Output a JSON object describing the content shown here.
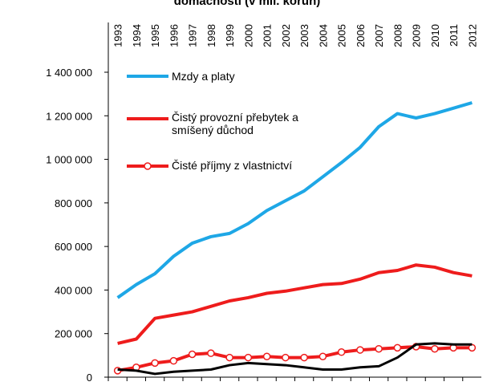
{
  "chart_data": {
    "type": "line",
    "title": "domácností (v mil. korun)",
    "categories": [
      "1993",
      "1994",
      "1995",
      "1996",
      "1997",
      "1998",
      "1999",
      "2000",
      "2001",
      "2002",
      "2003",
      "2004",
      "2005",
      "2006",
      "2007",
      "2008",
      "2009",
      "2010",
      "2011",
      "2012"
    ],
    "series": [
      {
        "name": "Mzdy a platy",
        "color": "#1ea7e6",
        "marker": false,
        "values": [
          365000,
          425000,
          475000,
          555000,
          615000,
          645000,
          660000,
          705000,
          765000,
          810000,
          855000,
          920000,
          985000,
          1055000,
          1150000,
          1210000,
          1190000,
          1210000,
          1235000,
          1260000
        ]
      },
      {
        "name": "Čistý provozní přebytek a smíšený důchod",
        "color": "#ee1c1c",
        "marker": false,
        "values": [
          155000,
          175000,
          270000,
          285000,
          300000,
          325000,
          350000,
          365000,
          385000,
          395000,
          410000,
          425000,
          430000,
          450000,
          480000,
          490000,
          515000,
          505000,
          480000,
          465000
        ]
      },
      {
        "name": "Čisté příjmy z vlastnictví",
        "color": "#ee1c1c",
        "marker": true,
        "values": [
          30000,
          45000,
          65000,
          75000,
          105000,
          110000,
          90000,
          90000,
          95000,
          90000,
          90000,
          95000,
          115000,
          125000,
          130000,
          135000,
          140000,
          130000,
          135000,
          135000
        ]
      },
      {
        "color": "#000000",
        "marker": false,
        "values": [
          35000,
          30000,
          15000,
          25000,
          30000,
          35000,
          55000,
          65000,
          60000,
          55000,
          45000,
          35000,
          35000,
          45000,
          50000,
          90000,
          150000,
          155000,
          150000,
          150000
        ]
      }
    ],
    "ylim": [
      0,
      1400000
    ],
    "yticks": [
      {
        "value": 0,
        "label": "0"
      },
      {
        "value": 200000,
        "label": "200 000"
      },
      {
        "value": 400000,
        "label": "400 000"
      },
      {
        "value": 600000,
        "label": "600 000"
      },
      {
        "value": 800000,
        "label": "800 000"
      },
      {
        "value": 1000000,
        "label": "1 000 000"
      },
      {
        "value": 1200000,
        "label": "1 200 000"
      },
      {
        "value": 1400000,
        "label": "1 400 000"
      }
    ],
    "grid": false
  }
}
